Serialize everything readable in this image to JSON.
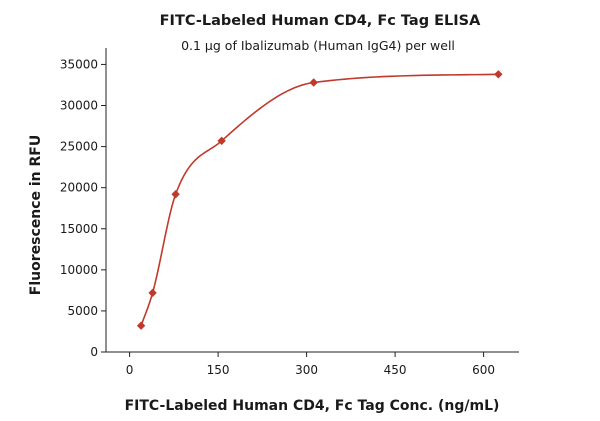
{
  "chart_data": {
    "type": "scatter",
    "title": "FITC-Labeled Human CD4, Fc Tag ELISA",
    "subtitle": "0.1 μg of Ibalizumab (Human IgG4) per well",
    "xlabel": "FITC-Labeled Human CD4, Fc Tag Conc. (ng/mL)",
    "ylabel": "Fluorescence in RFU",
    "xlim": [
      -40,
      660
    ],
    "ylim": [
      0,
      37000
    ],
    "x_ticks": [
      0,
      150,
      300,
      450,
      600
    ],
    "x_tick_labels": [
      "0",
      "150",
      "300",
      "450",
      "600"
    ],
    "y_ticks": [
      0,
      5000,
      10000,
      15000,
      20000,
      25000,
      30000,
      35000
    ],
    "y_tick_labels": [
      "0",
      "5000",
      "10000",
      "15000",
      "20000",
      "25000",
      "30000",
      "35000"
    ],
    "grid": false,
    "color": "#c0392b",
    "series": [
      {
        "marker": "diamond",
        "points": [
          {
            "x": 19.5,
            "y": 3200
          },
          {
            "x": 39,
            "y": 7200
          },
          {
            "x": 78,
            "y": 19200
          },
          {
            "x": 156,
            "y": 25700
          },
          {
            "x": 312,
            "y": 32800
          },
          {
            "x": 625,
            "y": 33800
          }
        ],
        "fit_curve": true
      }
    ]
  }
}
